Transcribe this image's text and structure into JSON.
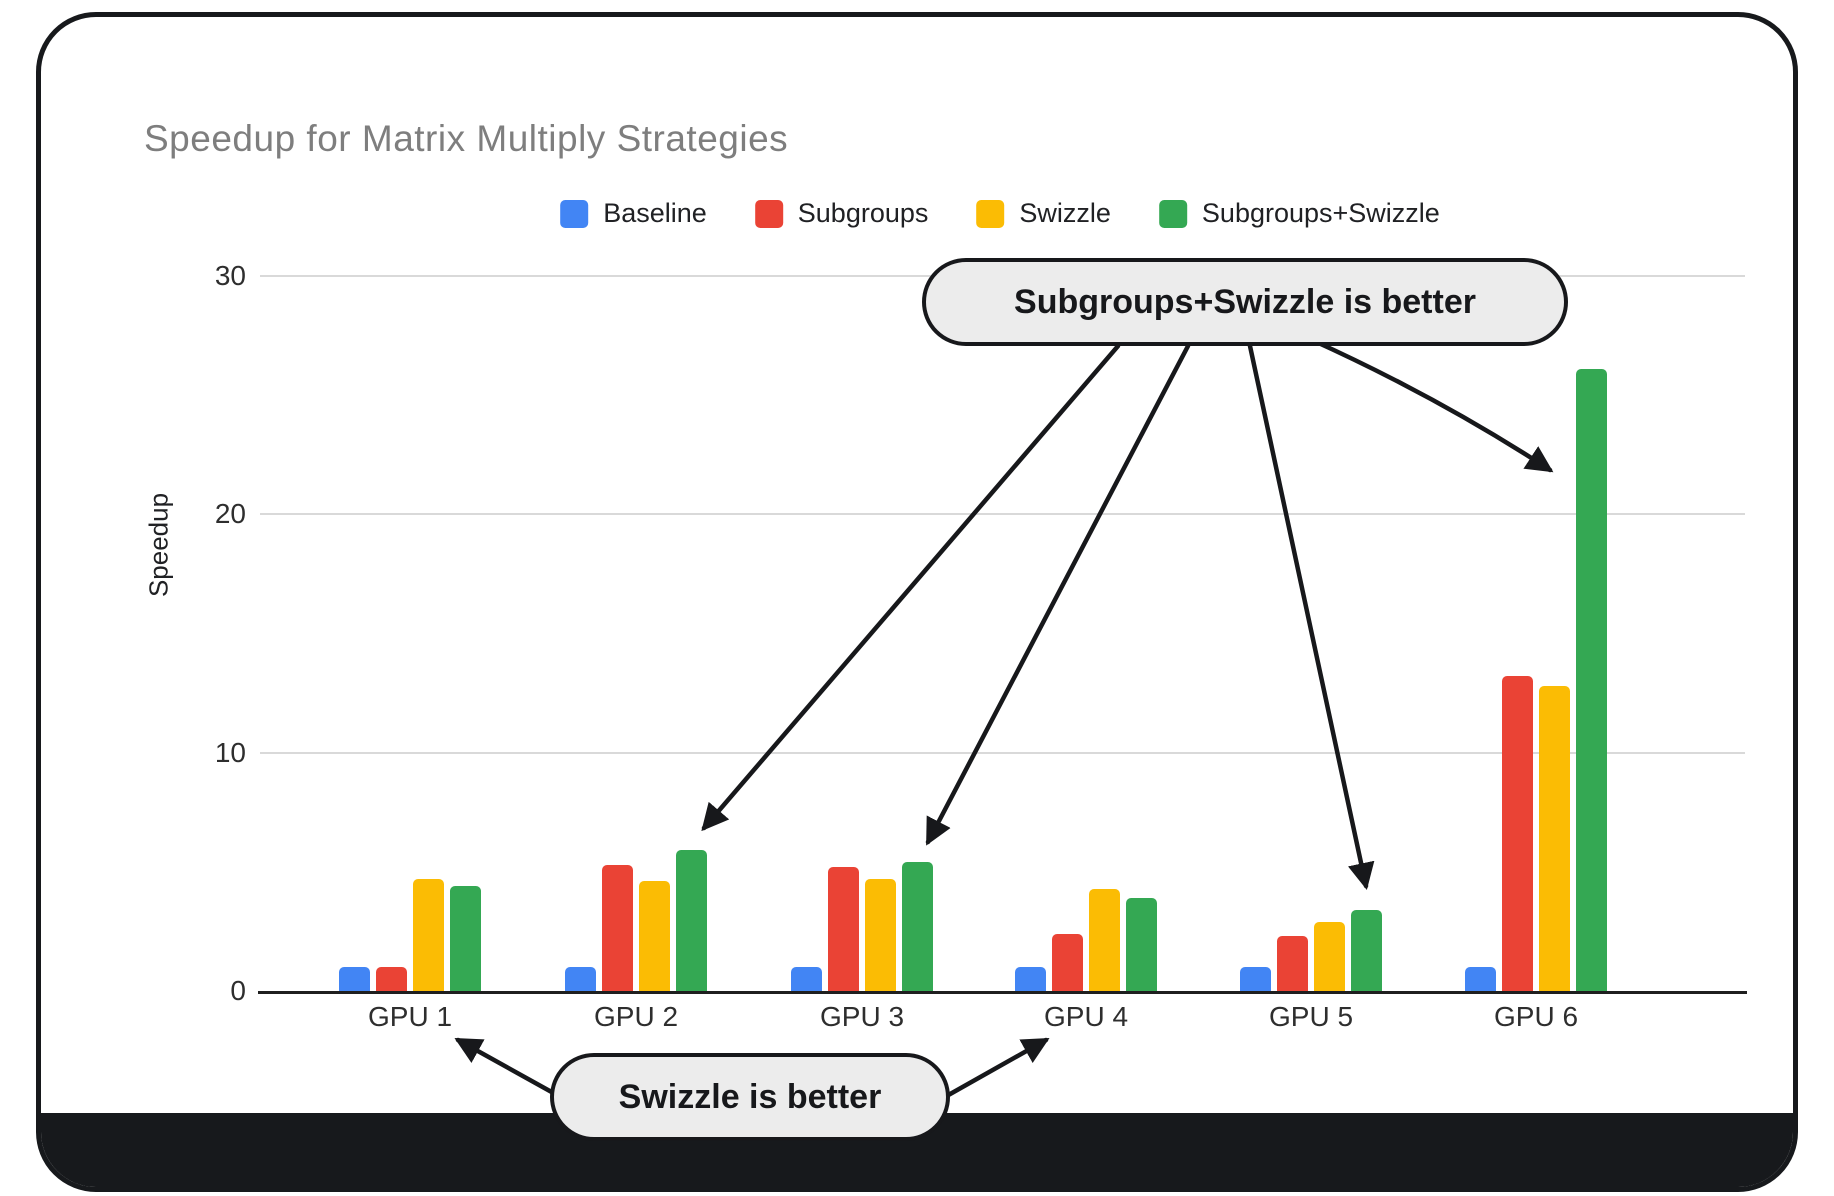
{
  "chart_data": {
    "type": "bar",
    "title": "Speedup for Matrix Multiply Strategies",
    "xlabel": "",
    "ylabel": "Speedup",
    "ylim": [
      0,
      30
    ],
    "yticks": [
      0,
      10,
      20,
      30
    ],
    "grid": true,
    "legend_position": "top",
    "categories": [
      "GPU 1",
      "GPU 2",
      "GPU 3",
      "GPU 4",
      "GPU 5",
      "GPU 6"
    ],
    "series": [
      {
        "name": "Baseline",
        "color": "#4285F4",
        "values": [
          1.0,
          1.0,
          1.0,
          1.0,
          1.0,
          1.0
        ]
      },
      {
        "name": "Subgroups",
        "color": "#EA4335",
        "values": [
          1.0,
          5.3,
          5.2,
          2.4,
          2.3,
          13.2
        ]
      },
      {
        "name": "Swizzle",
        "color": "#FBBC04",
        "values": [
          4.7,
          4.6,
          4.7,
          4.3,
          2.9,
          12.8
        ]
      },
      {
        "name": "Subgroups+Swizzle",
        "color": "#34A853",
        "values": [
          4.4,
          5.9,
          5.4,
          3.9,
          3.4,
          26.1
        ]
      }
    ]
  },
  "annotations": {
    "top_callout": "Subgroups+Swizzle is better",
    "bottom_callout": "Swizzle is better"
  },
  "colors": {
    "frame": "#17191c",
    "title_text": "#7e7e7e",
    "gridline": "#d9d9d9",
    "axis": "#1f1f1f",
    "callout_fill": "#ececec"
  }
}
